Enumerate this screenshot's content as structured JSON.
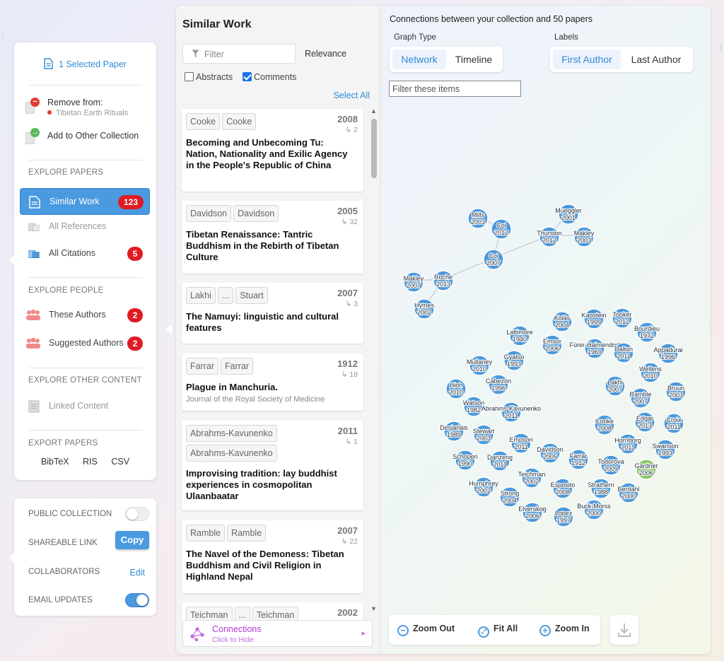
{
  "left_panel": {
    "selected": "1 Selected Paper",
    "remove_label": "Remove from:",
    "remove_collection": "Tibetan Earth Rituals",
    "add_label": "Add to Other Collection",
    "explore_papers": "EXPLORE PAPERS",
    "similar_work": "Similar Work",
    "similar_count": "123",
    "all_references": "All References",
    "all_citations": "All Citations",
    "citations_count": "5",
    "explore_people": "EXPLORE PEOPLE",
    "these_authors": "These Authors",
    "these_authors_count": "2",
    "suggested_authors": "Suggested Authors",
    "suggested_count": "2",
    "explore_other": "EXPLORE OTHER CONTENT",
    "linked_content": "Linked Content",
    "export_papers": "EXPORT PAPERS",
    "export_formats": [
      "BibTeX",
      "RIS",
      "CSV"
    ]
  },
  "settings": {
    "public_collection": "PUBLIC COLLECTION",
    "public_on": false,
    "shareable_link": "SHAREABLE LINK",
    "copy": "Copy",
    "collaborators": "COLLABORATORS",
    "edit": "Edit",
    "email_updates": "EMAIL UPDATES",
    "email_on": true
  },
  "middle": {
    "title": "Similar Work",
    "filter_placeholder": "Filter",
    "sort": "Relevance",
    "abstracts": "Abstracts",
    "comments": "Comments",
    "select_all": "Select All",
    "connections": "Connections",
    "connections_sub": "Click to Hide",
    "papers": [
      {
        "chips": [
          "Cooke",
          "Cooke"
        ],
        "year": "2008",
        "cites": "↳ 2",
        "title": "Becoming and Unbecoming Tu: Nation, Nationality and Exilic Agency in the People's Republic of China",
        "journal": ""
      },
      {
        "chips": [
          "Davidson",
          "Davidson"
        ],
        "year": "2005",
        "cites": "↳ 32",
        "title": "Tibetan Renaissance: Tantric Buddhism in the Rebirth of Tibetan Culture",
        "journal": ""
      },
      {
        "chips": [
          "Lakhi",
          "...",
          "Stuart"
        ],
        "year": "2007",
        "cites": "↳ 3",
        "title": "The Namuyi: linguistic and cultural features",
        "journal": ""
      },
      {
        "chips": [
          "Farrar",
          "Farrar"
        ],
        "year": "1912",
        "cites": "↳ 18",
        "title": "Plague in Manchuria.",
        "journal": "Journal of the Royal Society of Medicine"
      },
      {
        "chips": [
          "Abrahms-Kavunenko",
          "Abrahms-Kavunenko"
        ],
        "year": "2011",
        "cites": "↳ 1",
        "title": "Improvising tradition: lay buddhist experiences in cosmopolitan Ulaanbaatar",
        "journal": ""
      },
      {
        "chips": [
          "Ramble",
          "Ramble"
        ],
        "year": "2007",
        "cites": "↳ 22",
        "title": "The Navel of the Demoness: Tibetan Buddhism and Civil Religion in Highland Nepal",
        "journal": ""
      },
      {
        "chips": [
          "Teichman",
          "...",
          "Teichman"
        ],
        "year": "2002",
        "cites": "",
        "title": "",
        "journal": ""
      }
    ]
  },
  "right": {
    "title": "Connections between your collection and 50 papers",
    "graph_type_label": "Graph Type",
    "graph_types": [
      "Network",
      "Timeline"
    ],
    "labels_label": "Labels",
    "label_options": [
      "First Author",
      "Last Author"
    ],
    "filter_placeholder": "Filter these items",
    "zoom_out": "Zoom Out",
    "fit_all": "Fit All",
    "zoom_in": "Zoom In",
    "colors": {
      "node": "#3a8fd9",
      "node_highlight": "#7cc35a",
      "accent": "#2f8bd6"
    },
    "nodes": [
      {
        "name": "Mills",
        "year": "2003"
      },
      {
        "name": "Col",
        "year": "2012"
      },
      {
        "name": "Mueggler",
        "year": "2001"
      },
      {
        "name": "Thurston",
        "year": "2012"
      },
      {
        "name": "Makley",
        "year": "2003"
      },
      {
        "name": "Col",
        "year": "2007"
      },
      {
        "name": "Makley",
        "year": "2007"
      },
      {
        "name": "Roche",
        "year": "2013"
      },
      {
        "name": "Hymes",
        "year": "2002"
      },
      {
        "name": "Kolás",
        "year": "2004"
      },
      {
        "name": "Kaostein",
        "year": "1999"
      },
      {
        "name": "Tooker",
        "year": "2012"
      },
      {
        "name": "Lattimore",
        "year": "1940"
      },
      {
        "name": "Bourdieu",
        "year": "1972"
      },
      {
        "name": "Emsor",
        "year": "2006"
      },
      {
        "name": "Fürer-Haimendorf",
        "year": "1969"
      },
      {
        "name": "Dalton",
        "year": "2011"
      },
      {
        "name": "Appadurai",
        "year": "1996"
      },
      {
        "name": "Gyatso",
        "year": "1993"
      },
      {
        "name": "Mullaney",
        "year": "2010"
      },
      {
        "name": "Wellens",
        "year": "2010"
      },
      {
        "name": "Cabezón",
        "year": "1996"
      },
      {
        "name": "Lakhi",
        "year": "2007"
      },
      {
        "name": "Hioh",
        "year": "2010"
      },
      {
        "name": "Bruun",
        "year": "2003"
      },
      {
        "name": "Ramble",
        "year": "2007"
      },
      {
        "name": "Watson",
        "year": "1982"
      },
      {
        "name": "Abrahms-Kavunenko",
        "year": "2011"
      },
      {
        "name": "Desjarlais",
        "year": "1989"
      },
      {
        "name": "Cooke",
        "year": "2008"
      },
      {
        "name": "Edgar",
        "year": "2013"
      },
      {
        "name": "Croix",
        "year": "2011"
      },
      {
        "name": "Stewart",
        "year": "2003"
      },
      {
        "name": "Empson",
        "year": "2011"
      },
      {
        "name": "Hornborg",
        "year": "2011"
      },
      {
        "name": "Swanson",
        "year": "1993"
      },
      {
        "name": "Schopen",
        "year": "1990"
      },
      {
        "name": "Danzeng",
        "year": "2011"
      },
      {
        "name": "Davidson",
        "year": "2005"
      },
      {
        "name": "Farrar",
        "year": "1912"
      },
      {
        "name": "Todorova",
        "year": "2009"
      },
      {
        "name": "Gardner",
        "year": "2006"
      },
      {
        "name": "Teichman",
        "year": "2002"
      },
      {
        "name": "Humphrey",
        "year": "2002"
      },
      {
        "name": "Esposito",
        "year": "2008"
      },
      {
        "name": "Strathern",
        "year": "1988"
      },
      {
        "name": "Berdahl",
        "year": "2000"
      },
      {
        "name": "Strong",
        "year": "2004"
      },
      {
        "name": "Elverskog",
        "year": "2006"
      },
      {
        "name": "Lopez",
        "year": "1997"
      },
      {
        "name": "Buck-Morss",
        "year": "2000"
      }
    ],
    "edges": [
      [
        0,
        1
      ],
      [
        1,
        5
      ],
      [
        3,
        5
      ],
      [
        2,
        3
      ],
      [
        3,
        4
      ],
      [
        5,
        7
      ],
      [
        6,
        7
      ],
      [
        7,
        8
      ]
    ]
  }
}
